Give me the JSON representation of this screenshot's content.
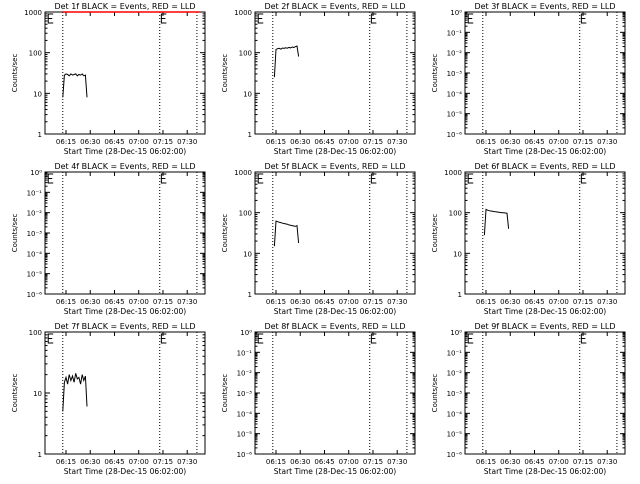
{
  "figure": {
    "xlabel": "Start Time (28-Dec-15 06:02:00)",
    "ylabel": "Counts/sec",
    "x_ticks": [
      "06:15",
      "06:30",
      "06:45",
      "07:00",
      "07:15",
      "07:30"
    ],
    "colors": {
      "events": "#000000",
      "lld": "#ff0000",
      "axes": "#000000",
      "background": "#ffffff"
    }
  },
  "chart_data": [
    {
      "type": "line",
      "title": "Det 1f BLACK = Events, RED = LLD",
      "ylim": [
        1,
        1000
      ],
      "y_ticks": [
        "1",
        "10",
        "100",
        "1000"
      ],
      "xlim": [
        "06:02",
        "07:41"
      ],
      "dotted_times": [
        "06:13",
        "07:13",
        "07:36"
      ],
      "series": [
        {
          "name": "Events",
          "color": "#000000",
          "x": [
            "06:13",
            "06:14",
            "06:15",
            "06:16",
            "06:17",
            "06:18",
            "06:19",
            "06:20",
            "06:21",
            "06:22",
            "06:23",
            "06:24",
            "06:25",
            "06:26",
            "06:27",
            "06:28"
          ],
          "y": [
            8,
            28,
            30,
            29,
            27,
            30,
            28,
            29,
            30,
            27,
            29,
            28,
            30,
            27,
            28,
            8
          ]
        },
        {
          "name": "LLD",
          "color": "#ff0000",
          "x": [
            "06:13",
            "06:30",
            "06:45",
            "07:00",
            "07:15",
            "07:30",
            "07:38"
          ],
          "y": [
            1000,
            1000,
            1000,
            1000,
            1000,
            1000,
            1000
          ]
        }
      ],
      "markers": [
        {
          "x": "06:04",
          "y": 1000
        },
        {
          "x": "07:14",
          "y": 1000
        }
      ]
    },
    {
      "type": "line",
      "title": "Det 2f BLACK = Events, RED = LLD",
      "ylim": [
        1,
        1000
      ],
      "y_ticks": [
        "1",
        "10",
        "100",
        "1000"
      ],
      "xlim": [
        "06:02",
        "07:41"
      ],
      "dotted_times": [
        "06:13",
        "07:13",
        "07:36"
      ],
      "series": [
        {
          "name": "Events",
          "color": "#000000",
          "x": [
            "06:14",
            "06:15",
            "06:16",
            "06:17",
            "06:18",
            "06:19",
            "06:20",
            "06:21",
            "06:22",
            "06:23",
            "06:24",
            "06:25",
            "06:26",
            "06:27",
            "06:28",
            "06:29"
          ],
          "y": [
            25,
            120,
            125,
            128,
            122,
            130,
            127,
            132,
            129,
            135,
            131,
            138,
            134,
            140,
            145,
            80
          ]
        }
      ],
      "markers": [
        {
          "x": "06:04",
          "y": 1000
        },
        {
          "x": "07:14",
          "y": 1000
        }
      ]
    },
    {
      "type": "line",
      "title": "Det 3f BLACK = Events, RED = LLD",
      "ylim": [
        1e-06,
        1
      ],
      "y_ticks": [
        "10⁻⁶",
        "10⁻⁵",
        "10⁻⁴",
        "10⁻³",
        "10⁻²",
        "10⁻¹",
        "10⁰"
      ],
      "xlim": [
        "06:02",
        "07:41"
      ],
      "dotted_times": [
        "06:13",
        "07:13",
        "07:36"
      ],
      "series": [],
      "markers": [
        {
          "x": "06:04",
          "y": 1
        },
        {
          "x": "07:14",
          "y": 1
        }
      ]
    },
    {
      "type": "line",
      "title": "Det 4f BLACK = Events, RED = LLD",
      "ylim": [
        1e-06,
        1
      ],
      "y_ticks": [
        "10⁻⁶",
        "10⁻⁵",
        "10⁻⁴",
        "10⁻³",
        "10⁻²",
        "10⁻¹",
        "10⁰"
      ],
      "xlim": [
        "06:02",
        "07:41"
      ],
      "dotted_times": [
        "06:13",
        "07:13",
        "07:36"
      ],
      "series": [],
      "markers": [
        {
          "x": "06:04",
          "y": 1
        },
        {
          "x": "07:14",
          "y": 1
        }
      ]
    },
    {
      "type": "line",
      "title": "Det 5f BLACK = Events, RED = LLD",
      "ylim": [
        1,
        1000
      ],
      "y_ticks": [
        "1",
        "10",
        "100",
        "1000"
      ],
      "xlim": [
        "06:02",
        "07:41"
      ],
      "dotted_times": [
        "06:13",
        "07:13",
        "07:36"
      ],
      "series": [
        {
          "name": "Events",
          "color": "#000000",
          "x": [
            "06:14",
            "06:15",
            "06:16",
            "06:17",
            "06:18",
            "06:19",
            "06:20",
            "06:21",
            "06:22",
            "06:23",
            "06:24",
            "06:25",
            "06:26",
            "06:27",
            "06:28",
            "06:29"
          ],
          "y": [
            15,
            62,
            60,
            58,
            57,
            55,
            54,
            53,
            52,
            50,
            49,
            48,
            47,
            46,
            48,
            18
          ]
        }
      ],
      "markers": [
        {
          "x": "06:04",
          "y": 1000
        },
        {
          "x": "07:14",
          "y": 1000
        }
      ]
    },
    {
      "type": "line",
      "title": "Det 6f BLACK = Events, RED = LLD",
      "ylim": [
        1,
        1000
      ],
      "y_ticks": [
        "1",
        "10",
        "100",
        "1000"
      ],
      "xlim": [
        "06:02",
        "07:41"
      ],
      "dotted_times": [
        "06:13",
        "07:13",
        "07:36"
      ],
      "series": [
        {
          "name": "Events",
          "color": "#000000",
          "x": [
            "06:14",
            "06:15",
            "06:16",
            "06:17",
            "06:18",
            "06:19",
            "06:20",
            "06:21",
            "06:22",
            "06:23",
            "06:24",
            "06:25",
            "06:26",
            "06:27",
            "06:28",
            "06:29"
          ],
          "y": [
            28,
            120,
            115,
            112,
            110,
            108,
            106,
            105,
            104,
            102,
            101,
            100,
            99,
            98,
            97,
            40
          ]
        }
      ],
      "markers": [
        {
          "x": "06:04",
          "y": 1000
        },
        {
          "x": "07:14",
          "y": 1000
        }
      ]
    },
    {
      "type": "line",
      "title": "Det 7f BLACK = Events, RED = LLD",
      "ylim": [
        1,
        100
      ],
      "y_ticks": [
        "1",
        "10",
        "100"
      ],
      "xlim": [
        "06:02",
        "07:41"
      ],
      "dotted_times": [
        "06:13",
        "07:13",
        "07:36"
      ],
      "series": [
        {
          "name": "Events",
          "color": "#000000",
          "x": [
            "06:13",
            "06:14",
            "06:15",
            "06:16",
            "06:17",
            "06:18",
            "06:19",
            "06:20",
            "06:21",
            "06:22",
            "06:23",
            "06:24",
            "06:25",
            "06:26",
            "06:27",
            "06:28"
          ],
          "y": [
            5,
            15,
            18,
            14,
            20,
            16,
            19,
            15,
            21,
            17,
            18,
            14,
            20,
            16,
            19,
            6
          ]
        }
      ],
      "markers": [
        {
          "x": "06:04",
          "y": 100
        },
        {
          "x": "07:14",
          "y": 100
        }
      ]
    },
    {
      "type": "line",
      "title": "Det 8f BLACK = Events, RED = LLD",
      "ylim": [
        1e-06,
        1
      ],
      "y_ticks": [
        "10⁻⁶",
        "10⁻⁵",
        "10⁻⁴",
        "10⁻³",
        "10⁻²",
        "10⁻¹",
        "10⁰"
      ],
      "xlim": [
        "06:02",
        "07:41"
      ],
      "dotted_times": [
        "06:13",
        "07:13",
        "07:36"
      ],
      "series": [],
      "markers": [
        {
          "x": "06:04",
          "y": 1
        },
        {
          "x": "07:14",
          "y": 1
        }
      ]
    },
    {
      "type": "line",
      "title": "Det 9f BLACK = Events, RED = LLD",
      "ylim": [
        1e-06,
        1
      ],
      "y_ticks": [
        "10⁻⁶",
        "10⁻⁵",
        "10⁻⁴",
        "10⁻³",
        "10⁻²",
        "10⁻¹",
        "10⁰"
      ],
      "xlim": [
        "06:02",
        "07:41"
      ],
      "dotted_times": [
        "06:13",
        "07:13",
        "07:36"
      ],
      "series": [],
      "markers": [
        {
          "x": "06:04",
          "y": 1
        },
        {
          "x": "07:14",
          "y": 1
        }
      ]
    }
  ]
}
